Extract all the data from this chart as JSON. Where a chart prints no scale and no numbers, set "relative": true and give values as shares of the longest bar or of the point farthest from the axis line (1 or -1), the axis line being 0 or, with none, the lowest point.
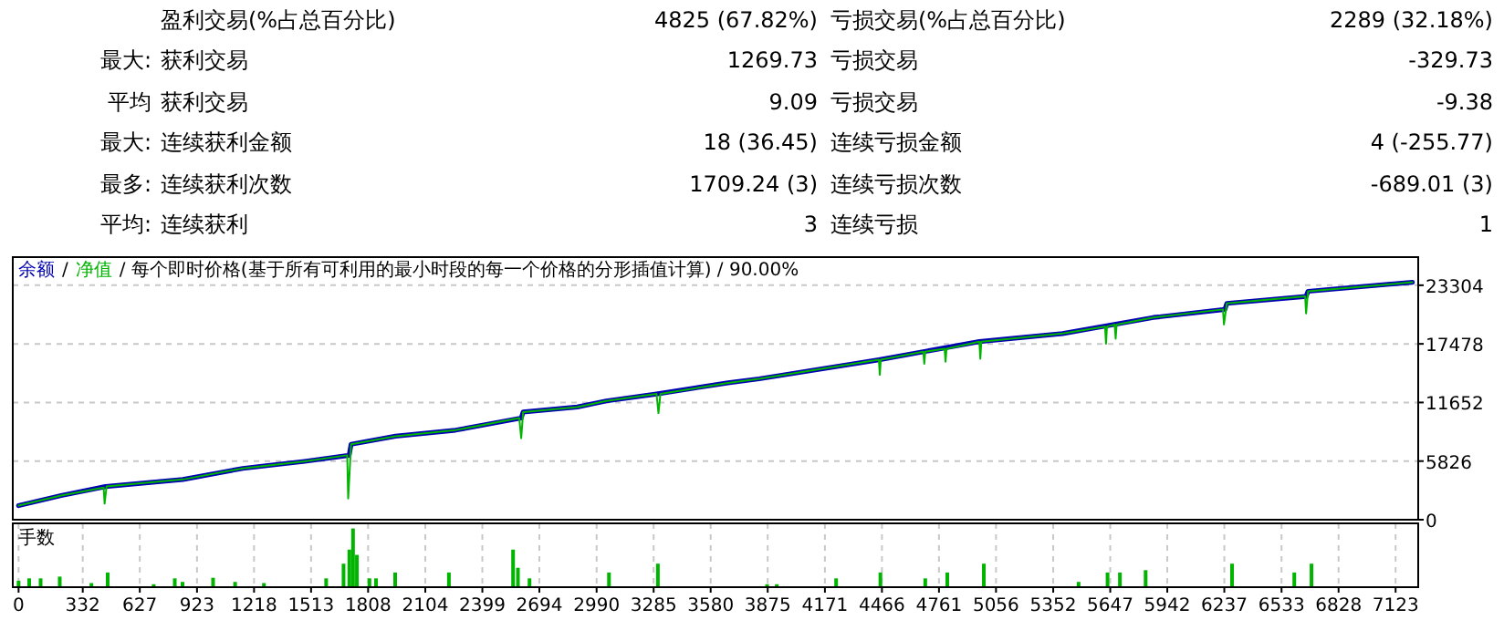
{
  "chart_data": [
    {
      "type": "other",
      "annotations": [
        "盈利交易(%占总百分比)",
        "4825 (67.82%)",
        "亏损交易(%占总百分比)",
        "2289 (32.18%)",
        "最大:",
        "获利交易",
        "1269.73",
        "亏损交易",
        "-329.73",
        "平均",
        "获利交易",
        "9.09",
        "亏损交易",
        "-9.38",
        "最大:",
        "连续获利金额",
        "18 (36.45)",
        "连续亏损金额",
        "4 (-255.77)",
        "最多:",
        "连续获利次数",
        "1709.24 (3)",
        "连续亏损次数",
        "-689.01 (3)",
        "平均:",
        "连续获利",
        "3",
        "连续亏损",
        "1"
      ]
    },
    {
      "type": "line",
      "annotations": [
        "/"
      ],
      "title": "/ 每个即时价格(基于所有可利用的最小时段的每一个价格的分形插值计算) / 90.00%",
      "legend": "top left",
      "grid": true,
      "tick_labels": "y",
      "xlim": [
        -30,
        7240
      ],
      "ylim": [
        0,
        26100
      ],
      "yticks": [
        0,
        5826,
        11652,
        17478,
        23304
      ],
      "series": [
        {
          "name": "余额",
          "color": "#0000b4",
          "x": [
            0,
            220,
            450,
            850,
            1160,
            1480,
            1710,
            1720,
            1950,
            2260,
            2600,
            2610,
            2890,
            3040,
            3300,
            3670,
            3830,
            4450,
            4970,
            5400,
            5870,
            6240,
            6250,
            6660,
            6670,
            7210
          ],
          "values": [
            1400,
            2400,
            3300,
            4000,
            5100,
            5800,
            6400,
            7500,
            8300,
            8900,
            10100,
            10700,
            11200,
            11800,
            12500,
            13600,
            14000,
            15900,
            17700,
            18500,
            20100,
            20900,
            21500,
            22200,
            22700,
            23600
          ]
        },
        {
          "name": "净值",
          "color": "#00b400",
          "x": [
            0,
            220,
            440,
            445,
            455,
            850,
            1160,
            1480,
            1700,
            1705,
            1720,
            1950,
            2260,
            2590,
            2600,
            2610,
            2890,
            3040,
            3300,
            3310,
            3320,
            3670,
            3830,
            4450,
            4455,
            4460,
            4680,
            4685,
            4690,
            4790,
            4795,
            4800,
            4970,
            4975,
            4980,
            5400,
            5620,
            5625,
            5630,
            5670,
            5675,
            5680,
            5870,
            6230,
            6235,
            6250,
            6655,
            6660,
            6670,
            7210
          ],
          "values": [
            1400,
            2400,
            3200,
            1600,
            3300,
            4000,
            5100,
            5800,
            6400,
            2100,
            7500,
            8300,
            8900,
            10100,
            8100,
            10700,
            11200,
            11800,
            12500,
            10600,
            12500,
            13600,
            14000,
            15900,
            14400,
            15900,
            16700,
            15500,
            16700,
            17000,
            15700,
            17000,
            17700,
            16000,
            17700,
            18500,
            19200,
            17500,
            19200,
            19400,
            18000,
            19400,
            20100,
            20900,
            19400,
            21500,
            22200,
            20500,
            22700,
            23600
          ]
        }
      ]
    },
    {
      "type": "bar",
      "title": "手数",
      "relative": true,
      "grid": "x",
      "tick_labels": "x",
      "xlim": [
        -30,
        7240
      ],
      "xticks": [
        0,
        332,
        627,
        923,
        1218,
        1513,
        1808,
        2104,
        2399,
        2694,
        2990,
        3285,
        3580,
        3875,
        4171,
        4466,
        4761,
        5056,
        5352,
        5647,
        5942,
        6237,
        6533,
        6828,
        7123
      ],
      "series": [
        {
          "color": "#00b400",
          "x": [
            0,
            55,
            114,
            213,
            377,
            461,
            699,
            808,
            848,
            1006,
            1120,
            1269,
            1591,
            1681,
            1711,
            1730,
            1750,
            1815,
            1849,
            1948,
            2226,
            2558,
            2583,
            2643,
            3054,
            3307,
            3872,
            3922,
            4229,
            4458,
            4690,
            4804,
            4993,
            5483,
            5633,
            5697,
            5830,
            6277,
            6599,
            6688
          ],
          "values": [
            0.11,
            0.15,
            0.15,
            0.18,
            0.07,
            0.25,
            0.05,
            0.15,
            0.09,
            0.16,
            0.09,
            0.07,
            0.15,
            0.4,
            0.64,
            1,
            0.55,
            0.15,
            0.15,
            0.25,
            0.25,
            0.64,
            0.33,
            0.15,
            0.25,
            0.4,
            0.05,
            0.05,
            0.15,
            0.25,
            0.15,
            0.25,
            0.4,
            0.09,
            0.25,
            0.25,
            0.29,
            0.4,
            0.25,
            0.4
          ]
        }
      ]
    }
  ]
}
